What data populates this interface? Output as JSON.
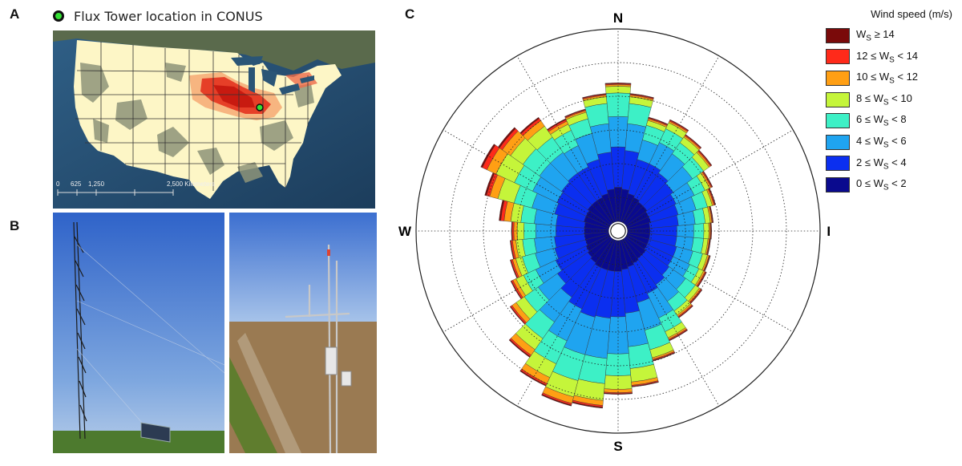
{
  "panel_labels": {
    "a": "A",
    "b": "B",
    "c": "C"
  },
  "map": {
    "legend_label": "Flux Tower location in CONUS",
    "scale_ticks": [
      "0",
      "625",
      "1,250",
      "2,500 Kilometers"
    ],
    "tower_color": "#35e135"
  },
  "photos": {
    "left": "tall lattice flux tower with solar panel in field",
    "right": "instrument mast with sensors above crop field"
  },
  "colors": {
    "ws_ge_14": "#7a0a0a",
    "ws_12_14": "#ff2a1a",
    "ws_10_12": "#ff9f14",
    "ws_8_10": "#c5f53a",
    "ws_6_8": "#3df0c6",
    "ws_4_6": "#1fa4f0",
    "ws_2_4": "#0b2ff0",
    "ws_0_2": "#0a0a8e"
  },
  "chart_data": {
    "type": "wind_rose",
    "directions": [
      "N",
      "E",
      "S",
      "W"
    ],
    "legend": {
      "title": "Wind speed (m/s)",
      "items": [
        {
          "key": "ws_ge_14",
          "label": "W_S ≥ 14"
        },
        {
          "key": "ws_12_14",
          "label": "12 ≤ W_S < 14"
        },
        {
          "key": "ws_10_12",
          "label": "10 ≤ W_S < 12"
        },
        {
          "key": "ws_8_10",
          "label": "8 ≤ W_S < 10"
        },
        {
          "key": "ws_6_8",
          "label": "6 ≤ W_S < 8"
        },
        {
          "key": "ws_4_6",
          "label": "4 ≤ W_S < 6"
        },
        {
          "key": "ws_2_4",
          "label": "2 ≤ W_S < 4"
        },
        {
          "key": "ws_0_2",
          "label": "0 ≤ W_S < 2"
        }
      ]
    },
    "series_order": [
      "ws_0_2",
      "ws_2_4",
      "ws_4_6",
      "ws_6_8",
      "ws_8_10",
      "ws_10_12",
      "ws_12_14",
      "ws_ge_14"
    ],
    "rings": 6,
    "max_radius": 6,
    "sectors": [
      {
        "dir": 0,
        "cum": [
          1.3,
          2.5,
          3.4,
          4.1,
          4.3,
          4.35,
          4.38,
          4.4
        ]
      },
      {
        "dir": 10,
        "cum": [
          1.25,
          2.4,
          3.2,
          3.8,
          4.0,
          4.05,
          4.08,
          4.1
        ]
      },
      {
        "dir": 20,
        "cum": [
          1.15,
          2.2,
          2.8,
          3.25,
          3.4,
          3.45,
          3.48,
          3.5
        ]
      },
      {
        "dir": 30,
        "cum": [
          1.1,
          2.2,
          2.9,
          3.35,
          3.55,
          3.6,
          3.63,
          3.65
        ]
      },
      {
        "dir": 40,
        "cum": [
          1.05,
          2.1,
          2.8,
          3.2,
          3.4,
          3.45,
          3.48,
          3.5
        ]
      },
      {
        "dir": 50,
        "cum": [
          1.05,
          2.0,
          2.7,
          3.1,
          3.3,
          3.35,
          3.38,
          3.4
        ]
      },
      {
        "dir": 60,
        "cum": [
          1.0,
          1.9,
          2.5,
          2.85,
          3.0,
          3.05,
          3.08,
          3.1
        ]
      },
      {
        "dir": 70,
        "cum": [
          1.0,
          1.85,
          2.4,
          2.75,
          2.9,
          2.95,
          2.98,
          3.0
        ]
      },
      {
        "dir": 80,
        "cum": [
          0.95,
          1.8,
          2.3,
          2.6,
          2.75,
          2.8,
          2.82,
          2.84
        ]
      },
      {
        "dir": 90,
        "cum": [
          0.95,
          1.75,
          2.25,
          2.55,
          2.7,
          2.74,
          2.76,
          2.78
        ]
      },
      {
        "dir": 100,
        "cum": [
          0.95,
          1.75,
          2.25,
          2.55,
          2.68,
          2.72,
          2.74,
          2.76
        ]
      },
      {
        "dir": 110,
        "cum": [
          0.95,
          1.8,
          2.3,
          2.6,
          2.75,
          2.8,
          2.82,
          2.84
        ]
      },
      {
        "dir": 120,
        "cum": [
          0.95,
          1.8,
          2.35,
          2.65,
          2.8,
          2.85,
          2.88,
          2.9
        ]
      },
      {
        "dir": 130,
        "cum": [
          1.0,
          1.85,
          2.45,
          2.8,
          2.95,
          3.0,
          3.03,
          3.05
        ]
      },
      {
        "dir": 140,
        "cum": [
          1.0,
          1.95,
          2.55,
          2.9,
          3.05,
          3.1,
          3.13,
          3.15
        ]
      },
      {
        "dir": 150,
        "cum": [
          1.05,
          2.05,
          2.85,
          3.3,
          3.5,
          3.55,
          3.58,
          3.6
        ]
      },
      {
        "dir": 160,
        "cum": [
          1.1,
          2.2,
          3.05,
          3.65,
          3.9,
          3.95,
          3.98,
          4.0
        ]
      },
      {
        "dir": 170,
        "cum": [
          1.15,
          2.45,
          3.45,
          4.1,
          4.5,
          4.6,
          4.63,
          4.65
        ]
      },
      {
        "dir": 180,
        "cum": [
          1.2,
          2.55,
          3.65,
          4.3,
          4.7,
          4.8,
          4.83,
          4.85
        ]
      },
      {
        "dir": 190,
        "cum": [
          1.2,
          2.6,
          3.8,
          4.55,
          5.05,
          5.2,
          5.25,
          5.28
        ]
      },
      {
        "dir": 200,
        "cum": [
          1.2,
          2.65,
          3.8,
          4.6,
          5.1,
          5.3,
          5.35,
          5.38
        ]
      },
      {
        "dir": 210,
        "cum": [
          1.2,
          2.55,
          3.6,
          4.35,
          4.8,
          5.0,
          5.05,
          5.08
        ]
      },
      {
        "dir": 220,
        "cum": [
          1.15,
          2.4,
          3.3,
          3.9,
          4.3,
          4.5,
          4.55,
          4.58
        ]
      },
      {
        "dir": 230,
        "cum": [
          1.1,
          2.2,
          2.9,
          3.4,
          3.7,
          3.85,
          3.9,
          3.92
        ]
      },
      {
        "dir": 240,
        "cum": [
          1.05,
          2.05,
          2.7,
          3.1,
          3.35,
          3.45,
          3.5,
          3.52
        ]
      },
      {
        "dir": 250,
        "cum": [
          1.0,
          1.95,
          2.55,
          2.95,
          3.15,
          3.25,
          3.3,
          3.32
        ]
      },
      {
        "dir": 260,
        "cum": [
          1.0,
          1.9,
          2.5,
          2.85,
          3.05,
          3.15,
          3.2,
          3.22
        ]
      },
      {
        "dir": 270,
        "cum": [
          1.0,
          1.85,
          2.45,
          2.8,
          3.0,
          3.1,
          3.15,
          3.17
        ]
      },
      {
        "dir": 280,
        "cum": [
          1.0,
          1.85,
          2.5,
          2.9,
          3.2,
          3.4,
          3.5,
          3.55
        ]
      },
      {
        "dir": 290,
        "cum": [
          1.05,
          1.95,
          2.65,
          3.2,
          3.7,
          3.95,
          4.05,
          4.1
        ]
      },
      {
        "dir": 300,
        "cum": [
          1.05,
          2.0,
          2.8,
          3.4,
          4.0,
          4.3,
          4.45,
          4.5
        ]
      },
      {
        "dir": 310,
        "cum": [
          1.1,
          2.05,
          2.85,
          3.45,
          3.9,
          4.2,
          4.3,
          4.35
        ]
      },
      {
        "dir": 320,
        "cum": [
          1.1,
          2.1,
          2.85,
          3.4,
          3.8,
          4.0,
          4.08,
          4.12
        ]
      },
      {
        "dir": 330,
        "cum": [
          1.1,
          2.1,
          2.8,
          3.3,
          3.5,
          3.6,
          3.65,
          3.68
        ]
      },
      {
        "dir": 340,
        "cum": [
          1.15,
          2.2,
          3.0,
          3.45,
          3.65,
          3.7,
          3.73,
          3.75
        ]
      },
      {
        "dir": 350,
        "cum": [
          1.25,
          2.35,
          3.2,
          3.8,
          4.0,
          4.05,
          4.08,
          4.1
        ]
      }
    ]
  }
}
